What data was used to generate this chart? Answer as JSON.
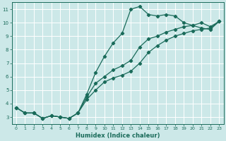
{
  "xlabel": "Humidex (Indice chaleur)",
  "bg_color": "#cce8e8",
  "grid_color": "#ffffff",
  "line_color": "#1a6b5a",
  "xlim": [
    -0.5,
    23.5
  ],
  "ylim": [
    2.5,
    11.5
  ],
  "xticks": [
    0,
    1,
    2,
    3,
    4,
    5,
    6,
    7,
    8,
    9,
    10,
    11,
    12,
    13,
    14,
    15,
    16,
    17,
    18,
    19,
    20,
    21,
    22,
    23
  ],
  "yticks": [
    3,
    4,
    5,
    6,
    7,
    8,
    9,
    10,
    11
  ],
  "line1_x": [
    0,
    1,
    2,
    3,
    4,
    5,
    6,
    7,
    8,
    9,
    10,
    11,
    12,
    13,
    14,
    15,
    16,
    17,
    18,
    19,
    20,
    21,
    22,
    23
  ],
  "line1_y": [
    3.7,
    3.3,
    3.3,
    2.9,
    3.1,
    3.0,
    2.9,
    3.3,
    4.7,
    6.3,
    7.5,
    8.5,
    9.2,
    11.0,
    11.2,
    10.6,
    10.5,
    10.6,
    10.5,
    10.0,
    9.8,
    9.6,
    9.5,
    10.1
  ],
  "line2_x": [
    0,
    1,
    2,
    3,
    4,
    5,
    6,
    7,
    8,
    9,
    10,
    11,
    12,
    13,
    14,
    15,
    16,
    17,
    18,
    19,
    20,
    21,
    22,
    23
  ],
  "line2_y": [
    3.7,
    3.3,
    3.3,
    2.9,
    3.1,
    3.0,
    2.9,
    3.3,
    4.5,
    5.5,
    6.0,
    6.5,
    6.8,
    7.2,
    8.2,
    8.8,
    9.0,
    9.3,
    9.5,
    9.7,
    9.8,
    10.0,
    9.7,
    10.1
  ],
  "line3_x": [
    0,
    1,
    2,
    3,
    4,
    5,
    6,
    7,
    8,
    9,
    10,
    11,
    12,
    13,
    14,
    15,
    16,
    17,
    18,
    19,
    20,
    21,
    22,
    23
  ],
  "line3_y": [
    3.7,
    3.3,
    3.3,
    2.9,
    3.1,
    3.0,
    2.9,
    3.3,
    4.3,
    5.0,
    5.6,
    5.9,
    6.1,
    6.4,
    7.0,
    7.8,
    8.3,
    8.7,
    9.0,
    9.2,
    9.4,
    9.5,
    9.6,
    10.1
  ]
}
